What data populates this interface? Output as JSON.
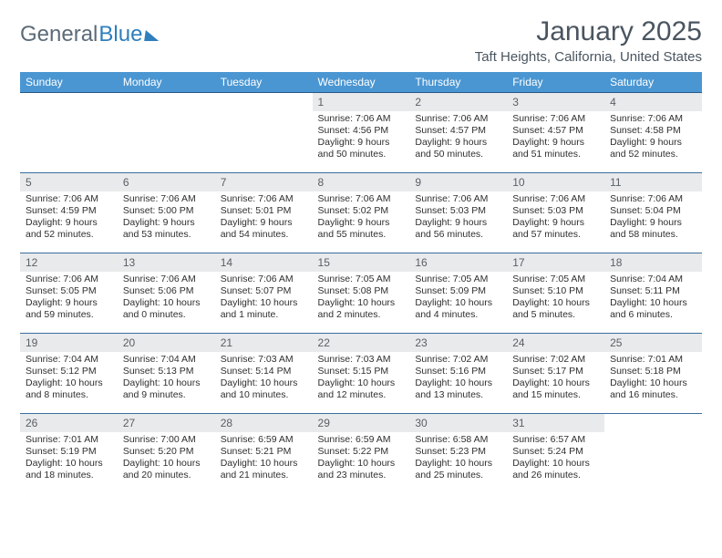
{
  "logo": {
    "text1": "General",
    "text2": "Blue"
  },
  "title": "January 2025",
  "location": "Taft Heights, California, United States",
  "weekdays": [
    "Sunday",
    "Monday",
    "Tuesday",
    "Wednesday",
    "Thursday",
    "Friday",
    "Saturday"
  ],
  "colors": {
    "header_bg": "#4a96d2",
    "header_border": "#2a5a88",
    "row_border": "#3b6fa0",
    "daynum_bg": "#e9eaeb",
    "logo_gray": "#5b6b78",
    "logo_blue": "#2e7fbd",
    "title_color": "#4a5560"
  },
  "weeks": [
    [
      null,
      null,
      null,
      {
        "n": "1",
        "sr": "7:06 AM",
        "ss": "4:56 PM",
        "dl": "9 hours and 50 minutes."
      },
      {
        "n": "2",
        "sr": "7:06 AM",
        "ss": "4:57 PM",
        "dl": "9 hours and 50 minutes."
      },
      {
        "n": "3",
        "sr": "7:06 AM",
        "ss": "4:57 PM",
        "dl": "9 hours and 51 minutes."
      },
      {
        "n": "4",
        "sr": "7:06 AM",
        "ss": "4:58 PM",
        "dl": "9 hours and 52 minutes."
      }
    ],
    [
      {
        "n": "5",
        "sr": "7:06 AM",
        "ss": "4:59 PM",
        "dl": "9 hours and 52 minutes."
      },
      {
        "n": "6",
        "sr": "7:06 AM",
        "ss": "5:00 PM",
        "dl": "9 hours and 53 minutes."
      },
      {
        "n": "7",
        "sr": "7:06 AM",
        "ss": "5:01 PM",
        "dl": "9 hours and 54 minutes."
      },
      {
        "n": "8",
        "sr": "7:06 AM",
        "ss": "5:02 PM",
        "dl": "9 hours and 55 minutes."
      },
      {
        "n": "9",
        "sr": "7:06 AM",
        "ss": "5:03 PM",
        "dl": "9 hours and 56 minutes."
      },
      {
        "n": "10",
        "sr": "7:06 AM",
        "ss": "5:03 PM",
        "dl": "9 hours and 57 minutes."
      },
      {
        "n": "11",
        "sr": "7:06 AM",
        "ss": "5:04 PM",
        "dl": "9 hours and 58 minutes."
      }
    ],
    [
      {
        "n": "12",
        "sr": "7:06 AM",
        "ss": "5:05 PM",
        "dl": "9 hours and 59 minutes."
      },
      {
        "n": "13",
        "sr": "7:06 AM",
        "ss": "5:06 PM",
        "dl": "10 hours and 0 minutes."
      },
      {
        "n": "14",
        "sr": "7:06 AM",
        "ss": "5:07 PM",
        "dl": "10 hours and 1 minute."
      },
      {
        "n": "15",
        "sr": "7:05 AM",
        "ss": "5:08 PM",
        "dl": "10 hours and 2 minutes."
      },
      {
        "n": "16",
        "sr": "7:05 AM",
        "ss": "5:09 PM",
        "dl": "10 hours and 4 minutes."
      },
      {
        "n": "17",
        "sr": "7:05 AM",
        "ss": "5:10 PM",
        "dl": "10 hours and 5 minutes."
      },
      {
        "n": "18",
        "sr": "7:04 AM",
        "ss": "5:11 PM",
        "dl": "10 hours and 6 minutes."
      }
    ],
    [
      {
        "n": "19",
        "sr": "7:04 AM",
        "ss": "5:12 PM",
        "dl": "10 hours and 8 minutes."
      },
      {
        "n": "20",
        "sr": "7:04 AM",
        "ss": "5:13 PM",
        "dl": "10 hours and 9 minutes."
      },
      {
        "n": "21",
        "sr": "7:03 AM",
        "ss": "5:14 PM",
        "dl": "10 hours and 10 minutes."
      },
      {
        "n": "22",
        "sr": "7:03 AM",
        "ss": "5:15 PM",
        "dl": "10 hours and 12 minutes."
      },
      {
        "n": "23",
        "sr": "7:02 AM",
        "ss": "5:16 PM",
        "dl": "10 hours and 13 minutes."
      },
      {
        "n": "24",
        "sr": "7:02 AM",
        "ss": "5:17 PM",
        "dl": "10 hours and 15 minutes."
      },
      {
        "n": "25",
        "sr": "7:01 AM",
        "ss": "5:18 PM",
        "dl": "10 hours and 16 minutes."
      }
    ],
    [
      {
        "n": "26",
        "sr": "7:01 AM",
        "ss": "5:19 PM",
        "dl": "10 hours and 18 minutes."
      },
      {
        "n": "27",
        "sr": "7:00 AM",
        "ss": "5:20 PM",
        "dl": "10 hours and 20 minutes."
      },
      {
        "n": "28",
        "sr": "6:59 AM",
        "ss": "5:21 PM",
        "dl": "10 hours and 21 minutes."
      },
      {
        "n": "29",
        "sr": "6:59 AM",
        "ss": "5:22 PM",
        "dl": "10 hours and 23 minutes."
      },
      {
        "n": "30",
        "sr": "6:58 AM",
        "ss": "5:23 PM",
        "dl": "10 hours and 25 minutes."
      },
      {
        "n": "31",
        "sr": "6:57 AM",
        "ss": "5:24 PM",
        "dl": "10 hours and 26 minutes."
      },
      null
    ]
  ],
  "labels": {
    "sunrise": "Sunrise: ",
    "sunset": "Sunset: ",
    "daylight": "Daylight: "
  }
}
